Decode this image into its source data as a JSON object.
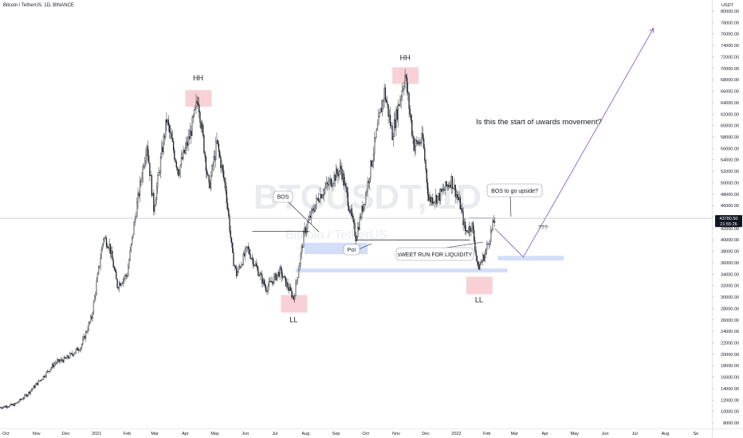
{
  "header": {
    "symbol_title": "Bitcoin / TetherUS, 1D, BINANCE"
  },
  "watermark": {
    "ticker": "BTCUSDT, 1D",
    "name": "Bitcoin / TetherUS"
  },
  "price_axis": {
    "currency": "USDT",
    "ticks": [
      "80000.00",
      "78000.00",
      "76000.00",
      "74000.00",
      "72000.00",
      "70000.00",
      "68000.00",
      "66000.00",
      "64000.00",
      "62000.00",
      "60000.00",
      "58000.00",
      "56000.00",
      "54000.00",
      "52000.00",
      "50000.00",
      "48000.00",
      "46000.00",
      "44000.00",
      "42000.00",
      "40000.00",
      "38000.00",
      "36000.00",
      "34000.00",
      "32000.00",
      "30000.00",
      "28000.00",
      "26000.00",
      "24000.00",
      "22000.00",
      "20000.00",
      "18000.00",
      "16000.00",
      "14000.00",
      "12000.00",
      "10000.00",
      "8000.00"
    ],
    "last_price_label": "43780.50",
    "countdown_label": "21:55:26"
  },
  "time_axis": {
    "ticks": [
      "Oct",
      "Nov",
      "Dec",
      "2021",
      "Feb",
      "Mar",
      "Apr",
      "May",
      "Jun",
      "Jul",
      "Aug",
      "Sep",
      "Oct",
      "Nov",
      "Dec",
      "2022",
      "Feb",
      "Mar",
      "Apr",
      "May",
      "Jun",
      "Jul",
      "Aug",
      "Se"
    ]
  },
  "annotations": {
    "hh_left": "HH",
    "hh_right": "HH",
    "ll_left": "LL",
    "ll_right": "LL",
    "bos_label": "BOS",
    "poi_label": "PoI",
    "sweet_run_label": "sWEET RUN FOR LIQUIDITY",
    "bos_upside_label": "BOS to go upside?",
    "question_marks": "???",
    "question_text": "Is this the start of uwards movement?"
  },
  "colors": {
    "up": "#131722",
    "down": "#131722",
    "zone_blue": "#c9d6f7",
    "zone_pink": "#f7c9cf",
    "projection": "#7b4fc9",
    "last_price_bg": "#131722"
  },
  "chart_data": {
    "type": "candlestick",
    "symbol": "Bitcoin / TetherUS",
    "interval": "1D",
    "exchange": "BINANCE",
    "x_range": [
      "2020-09-25",
      "2022-09-05"
    ],
    "y_range": [
      7000,
      81500
    ],
    "y_unit": "USDT",
    "last_price": 43780.5,
    "price_path": [
      [
        "2020-09-25",
        10700
      ],
      [
        "2020-10-10",
        11200
      ],
      [
        "2020-10-22",
        12900
      ],
      [
        "2020-11-05",
        15500
      ],
      [
        "2020-11-20",
        18500
      ],
      [
        "2020-12-01",
        19200
      ],
      [
        "2020-12-16",
        21300
      ],
      [
        "2020-12-27",
        26500
      ],
      [
        "2021-01-08",
        40500
      ],
      [
        "2021-01-14",
        39000
      ],
      [
        "2021-01-22",
        32000
      ],
      [
        "2021-02-01",
        34000
      ],
      [
        "2021-02-10",
        45000
      ],
      [
        "2021-02-21",
        57000
      ],
      [
        "2021-02-28",
        45500
      ],
      [
        "2021-03-13",
        61000
      ],
      [
        "2021-03-25",
        52000
      ],
      [
        "2021-04-06",
        58500
      ],
      [
        "2021-04-14",
        64800
      ],
      [
        "2021-04-25",
        49000
      ],
      [
        "2021-05-03",
        57000
      ],
      [
        "2021-05-12",
        49000
      ],
      [
        "2021-05-19",
        37000
      ],
      [
        "2021-05-23",
        34000
      ],
      [
        "2021-06-03",
        38500
      ],
      [
        "2021-06-22",
        31500
      ],
      [
        "2021-07-06",
        34500
      ],
      [
        "2021-07-20",
        29800
      ],
      [
        "2021-07-31",
        41500
      ],
      [
        "2021-08-14",
        47500
      ],
      [
        "2021-09-06",
        52500
      ],
      [
        "2021-09-21",
        40500
      ],
      [
        "2021-10-01",
        48000
      ],
      [
        "2021-10-20",
        66000
      ],
      [
        "2021-10-28",
        58500
      ],
      [
        "2021-11-10",
        68800
      ],
      [
        "2021-11-19",
        56500
      ],
      [
        "2021-11-28",
        57500
      ],
      [
        "2021-12-04",
        47000
      ],
      [
        "2021-12-14",
        47500
      ],
      [
        "2021-12-27",
        50500
      ],
      [
        "2022-01-05",
        46000
      ],
      [
        "2022-01-10",
        41500
      ],
      [
        "2022-01-17",
        42500
      ],
      [
        "2022-01-23",
        35000
      ],
      [
        "2022-01-30",
        37500
      ],
      [
        "2022-02-06",
        41800
      ],
      [
        "2022-02-09",
        43780
      ]
    ],
    "levels": [
      {
        "label": "BOS",
        "price": 41500
      },
      {
        "label": "PoI",
        "price_range": [
          37500,
          39500
        ]
      },
      {
        "label": "sWEET RUN FOR LIQUIDITY",
        "price": 40000
      },
      {
        "label": "liquidity zone",
        "price_range": [
          34300,
          35000
        ]
      },
      {
        "label": "BOS to go upside?",
        "price": 43800
      }
    ],
    "markers": [
      {
        "label": "HH",
        "date": "2021-04-14",
        "price": 64800
      },
      {
        "label": "LL",
        "date": "2021-07-20",
        "price": 29800
      },
      {
        "label": "HH",
        "date": "2021-11-10",
        "price": 68800
      },
      {
        "label": "LL",
        "date": "2022-01-24",
        "price": 33000
      }
    ],
    "projection": [
      [
        "2022-02-09",
        42000
      ],
      [
        "2022-03-10",
        37000
      ],
      [
        "2022-07-20",
        77000
      ]
    ],
    "projection_target_zone": {
      "date_range": [
        "2022-02-12",
        "2022-04-20"
      ],
      "price_range": [
        36400,
        37200
      ]
    },
    "annotation_text": "Is this the start of uwards movement?"
  }
}
